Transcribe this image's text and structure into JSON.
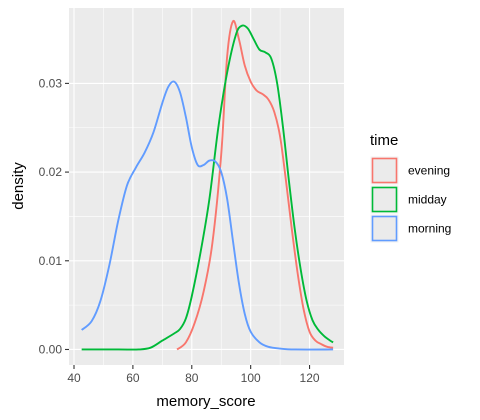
{
  "chart_data": {
    "type": "line",
    "title": "",
    "xlabel": "memory_score",
    "ylabel": "density",
    "xlim": [
      38.3,
      131.7
    ],
    "ylim": [
      -0.00175,
      0.0385
    ],
    "xticks": [
      40,
      60,
      80,
      100,
      120
    ],
    "xtick_labels": [
      "40",
      "60",
      "80",
      "100",
      "120"
    ],
    "yticks": [
      0,
      0.01,
      0.02,
      0.03
    ],
    "ytick_labels": [
      "0.00",
      "0.01",
      "0.02",
      "0.03"
    ],
    "grid": true,
    "legend": {
      "title": "time",
      "placement": "right"
    },
    "series": [
      {
        "name": "evening",
        "color": "#F8766D",
        "points": [
          [
            75,
            0
          ],
          [
            78,
            0.0008
          ],
          [
            81,
            0.003
          ],
          [
            84,
            0.0065
          ],
          [
            87,
            0.012
          ],
          [
            90,
            0.022
          ],
          [
            92,
            0.033
          ],
          [
            94,
            0.037
          ],
          [
            96,
            0.035
          ],
          [
            98,
            0.032
          ],
          [
            100,
            0.0302
          ],
          [
            102,
            0.0292
          ],
          [
            104,
            0.0288
          ],
          [
            106,
            0.0282
          ],
          [
            108,
            0.0268
          ],
          [
            110,
            0.024
          ],
          [
            112,
            0.019
          ],
          [
            114,
            0.0135
          ],
          [
            116,
            0.0085
          ],
          [
            118,
            0.0045
          ],
          [
            120,
            0.002
          ],
          [
            122,
            0.001
          ],
          [
            124,
            0.0006
          ],
          [
            126,
            0.0003
          ],
          [
            128,
            0.0002
          ]
        ]
      },
      {
        "name": "midday",
        "color": "#00BA38",
        "points": [
          [
            42.6,
            0
          ],
          [
            55,
            0
          ],
          [
            62,
            0
          ],
          [
            66,
            0.0002
          ],
          [
            70,
            0.001
          ],
          [
            74,
            0.0018
          ],
          [
            76,
            0.0023
          ],
          [
            78,
            0.0035
          ],
          [
            80,
            0.006
          ],
          [
            83,
            0.011
          ],
          [
            86,
            0.017
          ],
          [
            89,
            0.025
          ],
          [
            92,
            0.0312
          ],
          [
            95,
            0.0355
          ],
          [
            97,
            0.0365
          ],
          [
            99,
            0.0362
          ],
          [
            101,
            0.035
          ],
          [
            103,
            0.0338
          ],
          [
            105,
            0.0335
          ],
          [
            107,
            0.0328
          ],
          [
            109,
            0.03
          ],
          [
            111,
            0.025
          ],
          [
            113,
            0.019
          ],
          [
            115,
            0.0135
          ],
          [
            117,
            0.009
          ],
          [
            119,
            0.0055
          ],
          [
            121,
            0.0033
          ],
          [
            123,
            0.0022
          ],
          [
            125,
            0.0015
          ],
          [
            127,
            0.001
          ],
          [
            128,
            0.0008
          ]
        ]
      },
      {
        "name": "morning",
        "color": "#619CFF",
        "points": [
          [
            42.6,
            0.0022
          ],
          [
            46,
            0.0032
          ],
          [
            49,
            0.0055
          ],
          [
            52,
            0.0095
          ],
          [
            55,
            0.0145
          ],
          [
            58,
            0.0185
          ],
          [
            61,
            0.0205
          ],
          [
            64,
            0.0222
          ],
          [
            67,
            0.0245
          ],
          [
            70,
            0.0278
          ],
          [
            72,
            0.0296
          ],
          [
            74,
            0.0302
          ],
          [
            76,
            0.029
          ],
          [
            78,
            0.0262
          ],
          [
            80,
            0.0228
          ],
          [
            82,
            0.0208
          ],
          [
            84,
            0.0208
          ],
          [
            86,
            0.0213
          ],
          [
            88,
            0.0212
          ],
          [
            90,
            0.02
          ],
          [
            92,
            0.017
          ],
          [
            94,
            0.0122
          ],
          [
            96,
            0.0075
          ],
          [
            98,
            0.004
          ],
          [
            100,
            0.002
          ],
          [
            103,
            0.0008
          ],
          [
            106,
            0.0003
          ],
          [
            110,
            0.0001
          ],
          [
            115,
            0
          ],
          [
            128,
            0
          ]
        ]
      }
    ]
  }
}
